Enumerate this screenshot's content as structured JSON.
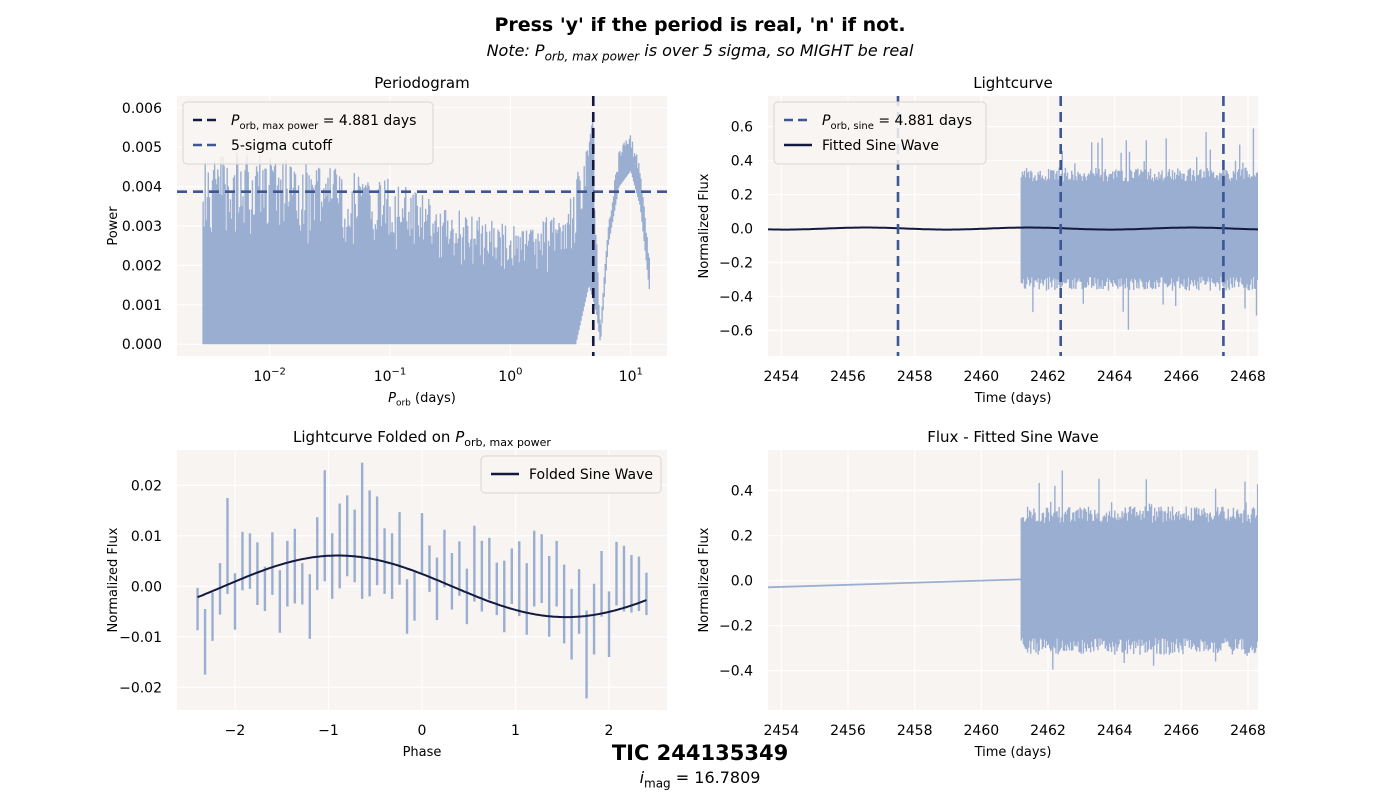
{
  "figure": {
    "suptitle": "Press 'y' if the period is real, 'n' if not.",
    "subtitle": "Note: P_orb, max power is over 5 sigma, so MIGHT be real",
    "footer_title": "TIC 244135349",
    "footer_subtitle": "i_mag = 16.7809",
    "colors": {
      "background": "#ffffff",
      "axes_face": "#f8f4f2",
      "grid": "#ffffff",
      "data": "#9aaed1",
      "dark": "#13193f",
      "dashed_blue": "#3d5694",
      "legend_edge": "#d9d5d2"
    }
  },
  "chart_data": [
    {
      "id": "periodogram",
      "type": "line",
      "title": "Periodogram",
      "xlabel": "P_orb (days)",
      "ylabel": "Power",
      "xscale": "log",
      "xlim": [
        0.0017,
        20
      ],
      "ylim": [
        -0.0003,
        0.0063
      ],
      "xticks": [
        0.01,
        0.1,
        1,
        10
      ],
      "xtick_labels": [
        "10^-2",
        "10^-1",
        "10^0",
        "10^1"
      ],
      "yticks": [
        0,
        0.001,
        0.002,
        0.003,
        0.004,
        0.005,
        0.006
      ],
      "ytick_labels": [
        "0.000",
        "0.001",
        "0.002",
        "0.003",
        "0.004",
        "0.005",
        "0.006"
      ],
      "grid": true,
      "legend_loc": "upper-left",
      "series": [
        {
          "name": "periodogram",
          "kind": "dense-noise",
          "x_range": [
            0.0028,
            14.5
          ],
          "envelope": [
            [
              0.0028,
              0.0047
            ],
            [
              0.005,
              0.0049
            ],
            [
              0.01,
              0.0048
            ],
            [
              0.03,
              0.0045
            ],
            [
              0.1,
              0.0042
            ],
            [
              0.3,
              0.0035
            ],
            [
              1.0,
              0.003
            ],
            [
              2.5,
              0.0033
            ],
            [
              3.5,
              0.0042
            ],
            [
              4.88,
              0.006
            ],
            [
              5.2,
              0.003
            ],
            [
              5.6,
              0.0005
            ],
            [
              6.5,
              0.003
            ],
            [
              8.0,
              0.005
            ],
            [
              10.0,
              0.0054
            ],
            [
              12.0,
              0.0045
            ],
            [
              14.5,
              0.002
            ]
          ],
          "floor": [
            [
              0.0028,
              0.0
            ],
            [
              3.5,
              0.0
            ],
            [
              4.5,
              0.0015
            ],
            [
              5.2,
              0.0008
            ],
            [
              5.6,
              0.0
            ],
            [
              6.5,
              0.0025
            ],
            [
              8.0,
              0.004
            ],
            [
              10.0,
              0.0044
            ],
            [
              12.0,
              0.0035
            ],
            [
              14.5,
              0.0012
            ]
          ]
        }
      ],
      "vlines": [
        {
          "x": 4.881,
          "style": "dashed",
          "color": "dark",
          "legend": "P_orb, max power = 4.881 days"
        }
      ],
      "hlines": [
        {
          "y": 0.00387,
          "style": "dashed",
          "color": "dashed_blue",
          "legend": "5-sigma cutoff"
        }
      ]
    },
    {
      "id": "lightcurve",
      "type": "line",
      "title": "Lightcurve",
      "xlabel": "Time (days)",
      "ylabel": "Normalized Flux",
      "xlim": [
        2453.6,
        2468.3
      ],
      "ylim": [
        -0.75,
        0.78
      ],
      "xticks": [
        2454,
        2456,
        2458,
        2460,
        2462,
        2464,
        2466,
        2468
      ],
      "xtick_labels": [
        "2454",
        "2456",
        "2458",
        "2460",
        "2462",
        "2464",
        "2466",
        "2468"
      ],
      "yticks": [
        -0.6,
        -0.4,
        -0.2,
        0.0,
        0.2,
        0.4,
        0.6
      ],
      "ytick_labels": [
        "−0.6",
        "−0.4",
        "−0.2",
        "0.0",
        "0.2",
        "0.4",
        "0.6"
      ],
      "grid": true,
      "legend_loc": "upper-left",
      "series": [
        {
          "name": "flux",
          "kind": "dense-noise",
          "x_range": [
            2461.2,
            2468.3
          ],
          "center": 0.03,
          "core": 0.33,
          "spike": 0.6
        },
        {
          "name": "Fitted Sine Wave",
          "kind": "sine",
          "x_range": [
            2453.6,
            2468.3
          ],
          "amplitude": 0.006,
          "period": 4.881,
          "peak_time": 2461.42,
          "offset": 0.0
        }
      ],
      "vlines": [
        {
          "x": 2457.5,
          "style": "dashed",
          "color": "dashed_blue"
        },
        {
          "x": 2462.381,
          "style": "dashed",
          "color": "dashed_blue"
        },
        {
          "x": 2467.262,
          "style": "dashed",
          "color": "dashed_blue"
        }
      ],
      "legend": [
        {
          "label": "P_orb, sine = 4.881 days",
          "style": "dashed",
          "color": "dashed_blue"
        },
        {
          "label": "Fitted Sine Wave",
          "style": "solid",
          "color": "dark"
        }
      ]
    },
    {
      "id": "folded",
      "type": "errorbar",
      "title": "Lightcurve Folded on P_orb, max power",
      "xlabel": "Phase",
      "ylabel": "Normalized Flux",
      "xlim": [
        -2.62,
        2.62
      ],
      "ylim": [
        -0.0245,
        0.027
      ],
      "xticks": [
        -2,
        -1,
        0,
        1,
        2
      ],
      "xtick_labels": [
        "−2",
        "−1",
        "0",
        "1",
        "2"
      ],
      "yticks": [
        -0.02,
        -0.01,
        0.0,
        0.01,
        0.02
      ],
      "ytick_labels": [
        "−0.02",
        "−0.01",
        "0.00",
        "0.01",
        "0.02"
      ],
      "grid": true,
      "legend_loc": "upper-right",
      "points_x": [
        -2.4,
        -2.32,
        -2.24,
        -2.16,
        -2.08,
        -2.0,
        -1.92,
        -1.84,
        -1.76,
        -1.68,
        -1.6,
        -1.52,
        -1.44,
        -1.36,
        -1.28,
        -1.2,
        -1.12,
        -1.04,
        -0.96,
        -0.88,
        -0.8,
        -0.72,
        -0.64,
        -0.56,
        -0.48,
        -0.4,
        -0.32,
        -0.24,
        -0.16,
        -0.08,
        0.0,
        0.08,
        0.16,
        0.24,
        0.32,
        0.4,
        0.48,
        0.56,
        0.64,
        0.72,
        0.8,
        0.88,
        0.96,
        1.04,
        1.12,
        1.2,
        1.28,
        1.36,
        1.44,
        1.52,
        1.6,
        1.68,
        1.76,
        1.84,
        1.92,
        2.0,
        2.08,
        2.16,
        2.24,
        2.32,
        2.4
      ],
      "points_y": [
        -0.0045,
        -0.011,
        -0.006,
        -0.0005,
        0.008,
        -0.003,
        0.005,
        0.005,
        0.0025,
        -0.0005,
        0.0045,
        -0.003,
        0.0025,
        0.004,
        0.0005,
        -0.004,
        0.0065,
        0.012,
        0.004,
        0.008,
        0.01,
        0.008,
        0.011,
        0.0085,
        0.009,
        0.005,
        0.004,
        0.0075,
        -0.004,
        -0.002,
        0.0085,
        0.0035,
        -0.0005,
        0.0055,
        0.001,
        0.0035,
        -0.002,
        0.0045,
        0.002,
        0.0035,
        -0.0005,
        -0.002,
        0.002,
        0.0015,
        -0.0025,
        0.0035,
        0.0035,
        -0.002,
        0.0025,
        -0.0035,
        -0.0075,
        -0.003,
        -0.0135,
        -0.0065,
        0.0005,
        -0.0075,
        0.0025,
        0.0015,
        0.0005,
        0.0005,
        -0.0015
      ],
      "points_err": [
        0.0042,
        0.0065,
        0.0048,
        0.0051,
        0.0095,
        0.0056,
        0.0058,
        0.0055,
        0.0062,
        0.0044,
        0.0062,
        0.0062,
        0.0065,
        0.0074,
        0.0041,
        0.0064,
        0.0072,
        0.011,
        0.0065,
        0.0084,
        0.008,
        0.0072,
        0.0135,
        0.0105,
        0.0088,
        0.0065,
        0.0065,
        0.0072,
        0.0054,
        0.0048,
        0.006,
        0.0046,
        0.0062,
        0.0057,
        0.0056,
        0.0054,
        0.0055,
        0.0075,
        0.007,
        0.0061,
        0.0052,
        0.0071,
        0.0055,
        0.0074,
        0.0071,
        0.0075,
        0.0068,
        0.008,
        0.0065,
        0.0078,
        0.007,
        0.0064,
        0.0087,
        0.007,
        0.0065,
        0.0065,
        0.0063,
        0.0065,
        0.0057,
        0.0054,
        0.0042
      ],
      "series": [
        {
          "name": "Folded Sine Wave",
          "kind": "sine",
          "x_range": [
            -2.4,
            2.4
          ],
          "amplitude": 0.0061,
          "period": 4.881,
          "peak_time": -0.9,
          "offset": 0.0
        }
      ],
      "legend": [
        {
          "label": "Folded Sine Wave",
          "style": "solid",
          "color": "dark"
        }
      ]
    },
    {
      "id": "residual",
      "type": "line",
      "title": "Flux - Fitted Sine Wave",
      "xlabel": "Time (days)",
      "ylabel": "Normalized Flux",
      "xlim": [
        2453.6,
        2468.3
      ],
      "ylim": [
        -0.575,
        0.58
      ],
      "xticks": [
        2454,
        2456,
        2458,
        2460,
        2462,
        2464,
        2466,
        2468
      ],
      "xtick_labels": [
        "2454",
        "2456",
        "2458",
        "2460",
        "2462",
        "2464",
        "2466",
        "2468"
      ],
      "yticks": [
        -0.4,
        -0.2,
        0.0,
        0.2,
        0.4
      ],
      "ytick_labels": [
        "−0.4",
        "−0.2",
        "0.0",
        "0.2",
        "0.4"
      ],
      "grid": true,
      "series": [
        {
          "name": "residual",
          "kind": "dense-noise",
          "x_range": [
            2461.2,
            2468.3
          ],
          "center": 0.03,
          "core": 0.3,
          "spike": 0.5
        },
        {
          "name": "gap",
          "kind": "segment",
          "points": [
            [
              2453.6,
              -0.03
            ],
            [
              2461.2,
              0.005
            ]
          ]
        }
      ]
    }
  ]
}
